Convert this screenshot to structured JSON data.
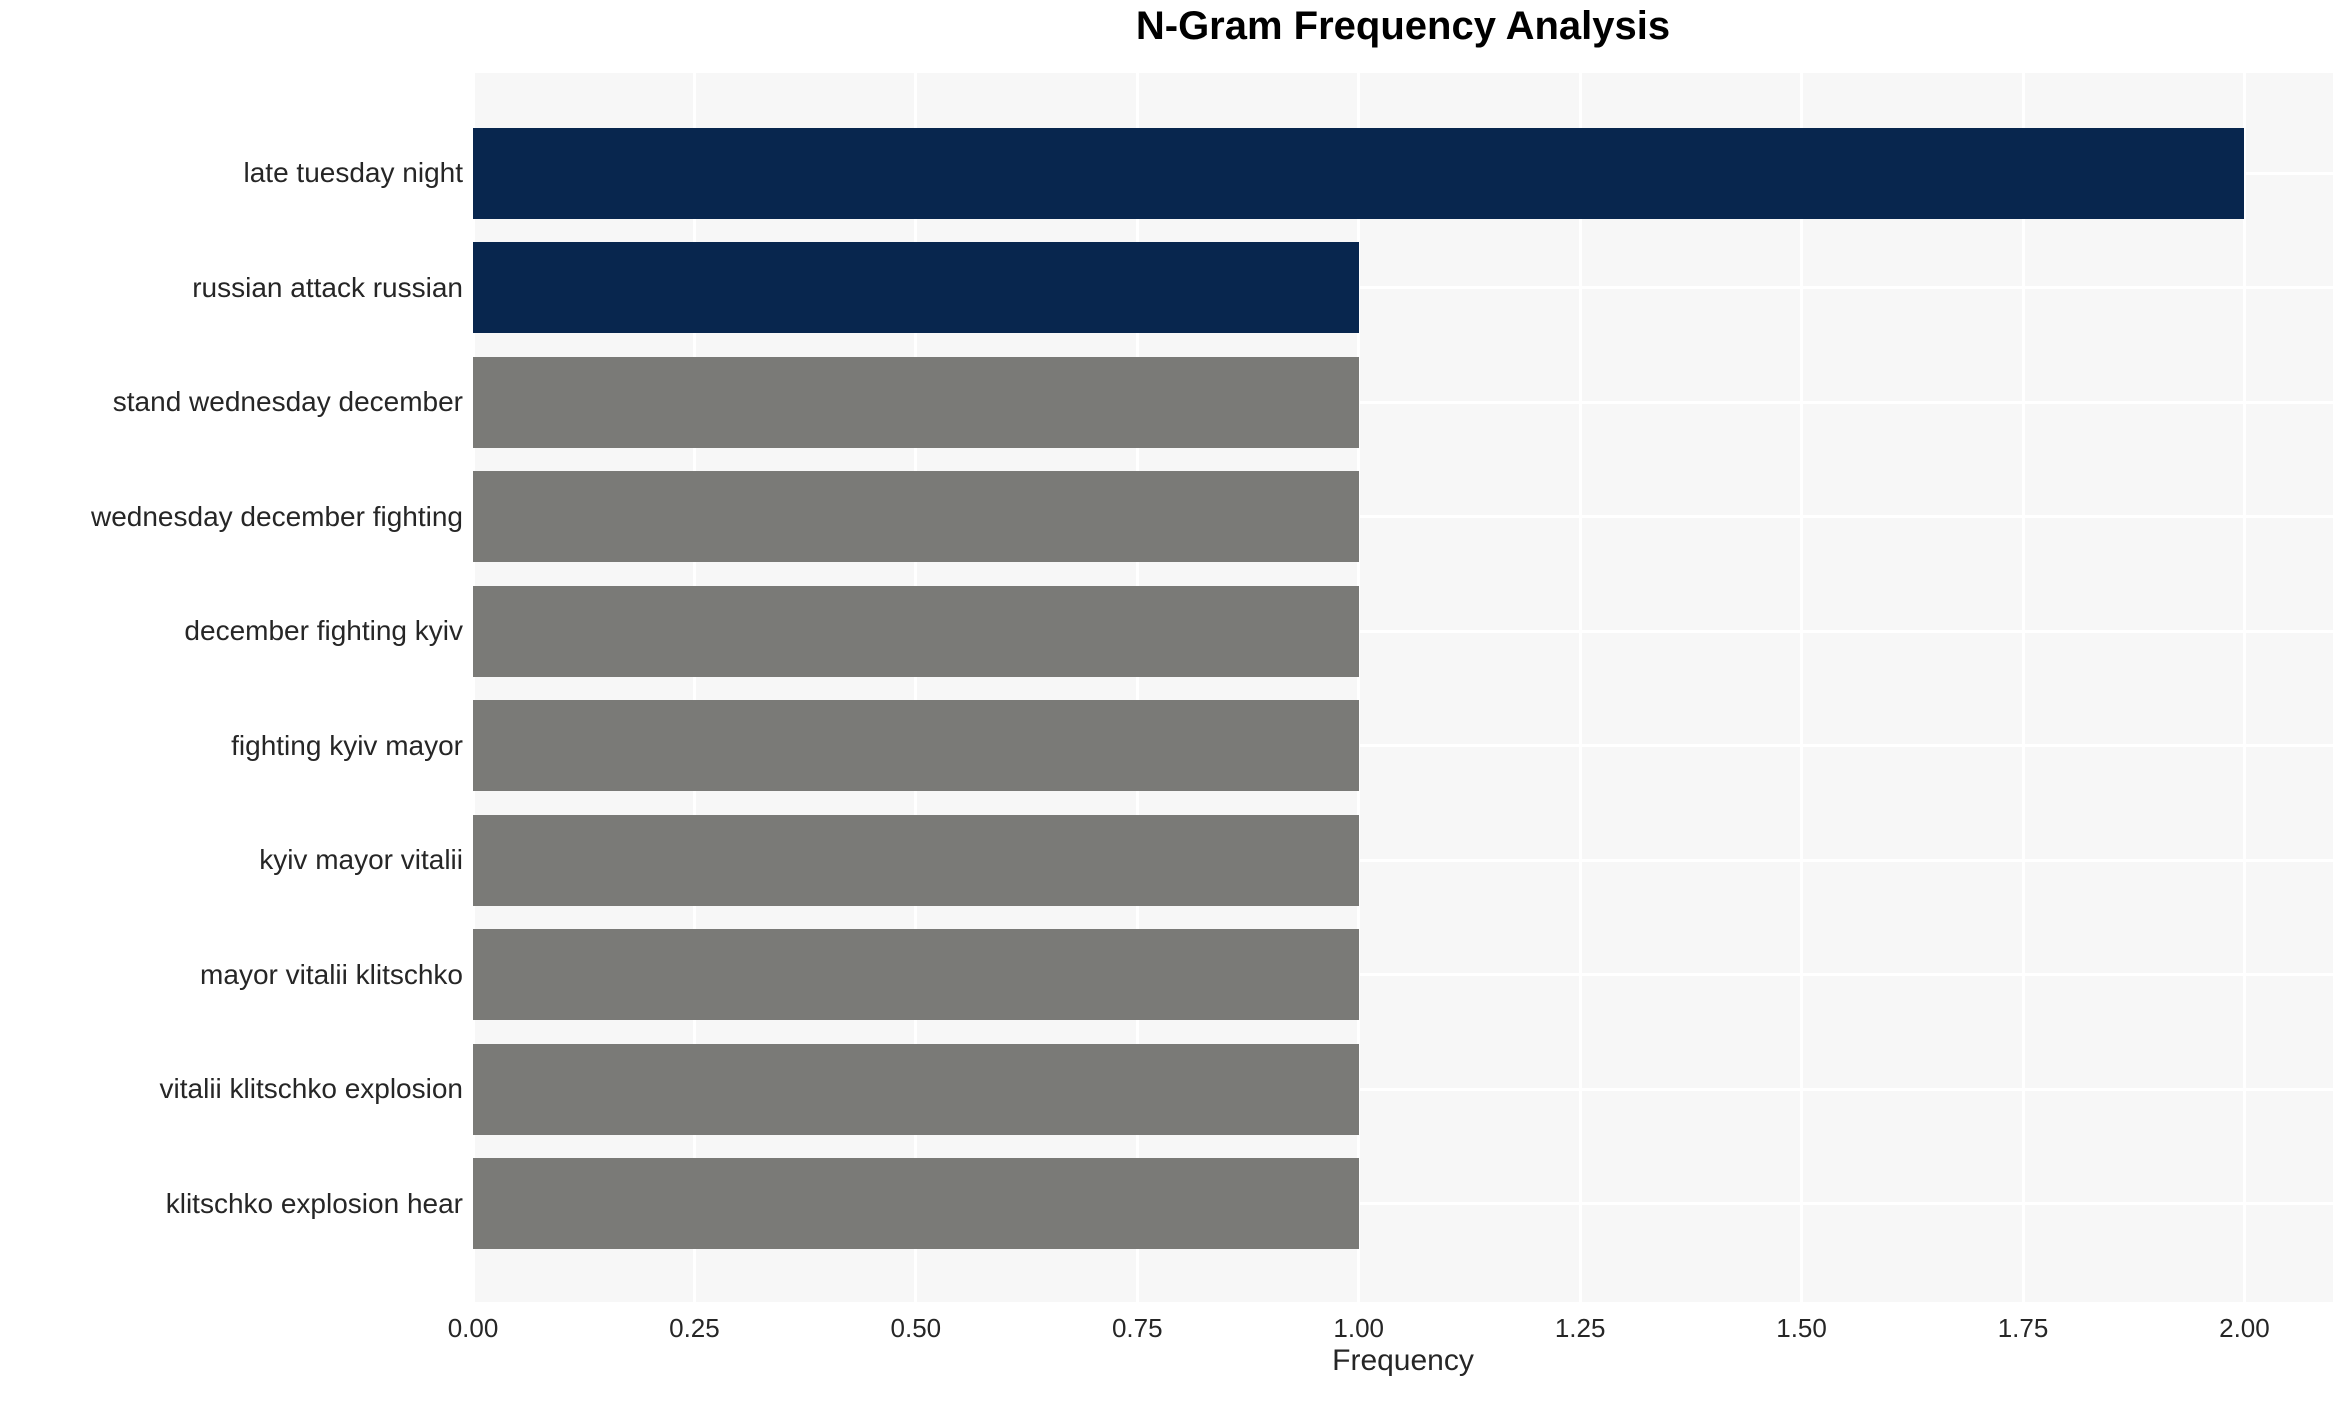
{
  "title": "N-Gram Frequency Analysis",
  "chart_data": {
    "type": "bar",
    "orientation": "horizontal",
    "title": "N-Gram Frequency Analysis",
    "xlabel": "Frequency",
    "ylabel": "",
    "categories": [
      "late tuesday night",
      "russian attack russian",
      "stand wednesday december",
      "wednesday december fighting",
      "december fighting kyiv",
      "fighting kyiv mayor",
      "kyiv mayor vitalii",
      "mayor vitalii klitschko",
      "vitalii klitschko explosion",
      "klitschko explosion hear"
    ],
    "values": [
      2,
      1,
      1,
      1,
      1,
      1,
      1,
      1,
      1,
      1
    ],
    "bar_colors": [
      "#08264e",
      "#08264e",
      "#7a7a77",
      "#7a7a77",
      "#7a7a77",
      "#7a7a77",
      "#7a7a77",
      "#7a7a77",
      "#7a7a77",
      "#7a7a77"
    ],
    "xlim": [
      0,
      2.1
    ],
    "xticks": [
      0,
      0.25,
      0.5,
      0.75,
      1.0,
      1.25,
      1.5,
      1.75,
      2.0
    ],
    "xtick_labels": [
      "0.00",
      "0.25",
      "0.50",
      "0.75",
      "1.00",
      "1.25",
      "1.50",
      "1.75",
      "2.00"
    ],
    "grid": true,
    "legend": "none",
    "plot_bg_color": "#f7f7f7",
    "figure_bg_color": "#ffffff",
    "grid_color": "#ffffff",
    "tick_text_color": "#262626",
    "title_color": "#000000"
  }
}
